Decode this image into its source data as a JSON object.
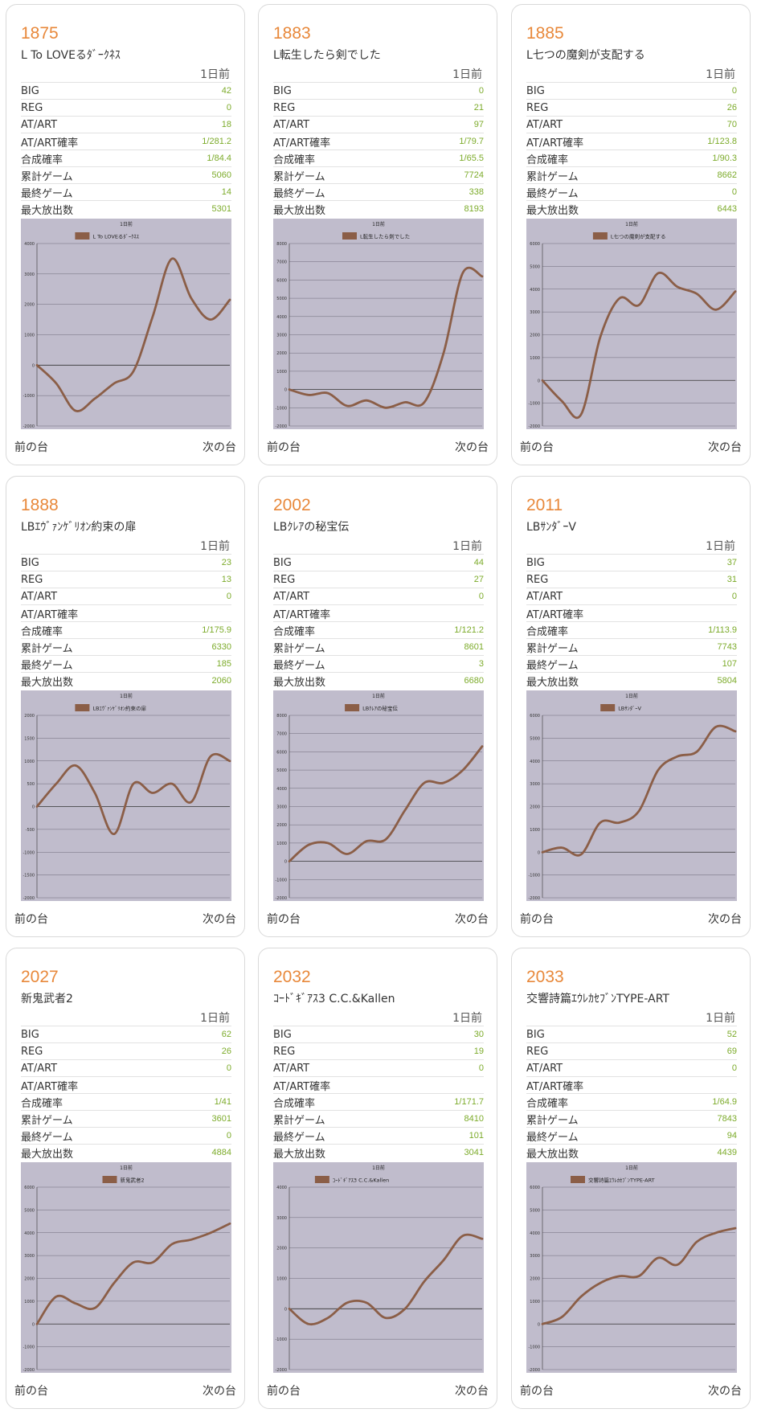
{
  "labels": {
    "day": "1日前",
    "prev": "前の台",
    "next": "次の台",
    "stats": [
      "BIG",
      "REG",
      "AT/ART",
      "AT/ART確率",
      "合成確率",
      "累計ゲーム",
      "最終ゲーム",
      "最大放出数"
    ]
  },
  "colors": {
    "number": "#e8883a",
    "value": "#7cab2a",
    "line": "#8b5e47",
    "plot_bg": "#c0bccc"
  },
  "machines": [
    {
      "number": "1875",
      "name": "L To LOVEるﾀﾞｰｸﾈｽ",
      "stats": [
        "42",
        "0",
        "18",
        "1/281.2",
        "1/84.4",
        "5060",
        "14",
        "5301"
      ],
      "chart_data": {
        "type": "line",
        "title": "1日前",
        "legend": "L To LOVEるﾀﾞｰｸﾈｽ",
        "ylim": [
          -2000,
          4000
        ],
        "yticks": [
          -2000,
          -1000,
          0,
          1000,
          2000,
          3000,
          4000
        ],
        "x": [
          0,
          506,
          1012,
          1518,
          2024,
          2530,
          3036,
          3542,
          4048,
          4554,
          5060
        ],
        "y": [
          0,
          -600,
          -1500,
          -1100,
          -600,
          -200,
          1600,
          3500,
          2200,
          1500,
          2150
        ]
      }
    },
    {
      "number": "1883",
      "name": "L転生したら剣でした",
      "stats": [
        "0",
        "21",
        "97",
        "1/79.7",
        "1/65.5",
        "7724",
        "338",
        "8193"
      ],
      "chart_data": {
        "type": "line",
        "title": "1日前",
        "legend": "L転生したら剣でした",
        "ylim": [
          -2000,
          8000
        ],
        "yticks": [
          -2000,
          -1000,
          0,
          1000,
          2000,
          3000,
          4000,
          5000,
          6000,
          7000,
          8000
        ],
        "x": [
          0,
          772,
          1545,
          2317,
          3090,
          3862,
          4634,
          5407,
          6179,
          6952,
          7724
        ],
        "y": [
          0,
          -300,
          -200,
          -900,
          -600,
          -1000,
          -700,
          -700,
          2000,
          6400,
          6200
        ]
      }
    },
    {
      "number": "1885",
      "name": "L七つの魔剣が支配する",
      "stats": [
        "0",
        "26",
        "70",
        "1/123.8",
        "1/90.3",
        "8662",
        "0",
        "6443"
      ],
      "chart_data": {
        "type": "line",
        "title": "1日前",
        "legend": "L七つの魔剣が支配する",
        "ylim": [
          -2000,
          6000
        ],
        "yticks": [
          -2000,
          -1000,
          0,
          1000,
          2000,
          3000,
          4000,
          5000,
          6000
        ],
        "x": [
          0,
          866,
          1732,
          2599,
          3465,
          4331,
          5197,
          6063,
          6930,
          7796,
          8662
        ],
        "y": [
          0,
          -900,
          -1500,
          1900,
          3600,
          3300,
          4700,
          4100,
          3800,
          3100,
          3900
        ]
      }
    },
    {
      "number": "1888",
      "name": "LBｴｳﾞｧﾝｹﾞﾘｵﾝ約束の扉",
      "stats": [
        "23",
        "13",
        "0",
        "",
        "1/175.9",
        "6330",
        "185",
        "2060"
      ],
      "chart_data": {
        "type": "line",
        "title": "1日前",
        "legend": "LBｴｳﾞｧﾝｹﾞﾘｵﾝ約束の扉",
        "ylim": [
          -2000,
          2000
        ],
        "yticks": [
          -2000,
          -1500,
          -1000,
          -500,
          0,
          500,
          1000,
          1500,
          2000
        ],
        "x": [
          0,
          633,
          1266,
          1899,
          2532,
          3165,
          3798,
          4431,
          5064,
          5697,
          6330
        ],
        "y": [
          0,
          500,
          900,
          300,
          -600,
          500,
          300,
          500,
          100,
          1100,
          1000
        ]
      }
    },
    {
      "number": "2002",
      "name": "LBｸﾚｱの秘宝伝",
      "stats": [
        "44",
        "27",
        "0",
        "",
        "1/121.2",
        "8601",
        "3",
        "6680"
      ],
      "chart_data": {
        "type": "line",
        "title": "1日前",
        "legend": "LBｸﾚｱの秘宝伝",
        "ylim": [
          -2000,
          8000
        ],
        "yticks": [
          -2000,
          -1000,
          0,
          1000,
          2000,
          3000,
          4000,
          5000,
          6000,
          7000,
          8000
        ],
        "x": [
          0,
          860,
          1720,
          2580,
          3440,
          4300,
          5161,
          6021,
          6881,
          7741,
          8601
        ],
        "y": [
          0,
          900,
          1000,
          400,
          1100,
          1200,
          2800,
          4300,
          4300,
          5000,
          6300
        ]
      }
    },
    {
      "number": "2011",
      "name": "LBｻﾝﾀﾞｰV",
      "stats": [
        "37",
        "31",
        "0",
        "",
        "1/113.9",
        "7743",
        "107",
        "5804"
      ],
      "chart_data": {
        "type": "line",
        "title": "1日前",
        "legend": "LBｻﾝﾀﾞｰV",
        "ylim": [
          -2000,
          6000
        ],
        "yticks": [
          -2000,
          -1000,
          0,
          1000,
          2000,
          3000,
          4000,
          5000,
          6000
        ],
        "x": [
          0,
          774,
          1549,
          2323,
          3097,
          3872,
          4646,
          5420,
          6194,
          6969,
          7743
        ],
        "y": [
          0,
          200,
          -100,
          1300,
          1300,
          1800,
          3600,
          4200,
          4400,
          5500,
          5300
        ]
      }
    },
    {
      "number": "2027",
      "name": "新鬼武者2",
      "stats": [
        "62",
        "26",
        "0",
        "",
        "1/41",
        "3601",
        "0",
        "4884"
      ],
      "chart_data": {
        "type": "line",
        "title": "1日前",
        "legend": "新鬼武者2",
        "ylim": [
          -2000,
          6000
        ],
        "yticks": [
          -2000,
          -1000,
          0,
          1000,
          2000,
          3000,
          4000,
          5000,
          6000
        ],
        "x": [
          0,
          360,
          720,
          1080,
          1440,
          1801,
          2161,
          2521,
          2881,
          3241,
          3601
        ],
        "y": [
          0,
          1200,
          900,
          700,
          1800,
          2700,
          2700,
          3500,
          3700,
          4000,
          4400
        ]
      }
    },
    {
      "number": "2032",
      "name": "ｺｰﾄﾞｷﾞｱｽ3 C.C.&Kallen",
      "stats": [
        "30",
        "19",
        "0",
        "",
        "1/171.7",
        "8410",
        "101",
        "3041"
      ],
      "chart_data": {
        "type": "line",
        "title": "1日前",
        "legend": "ｺｰﾄﾞｷﾞｱｽ3 C.C.&Kallen",
        "ylim": [
          -2000,
          4000
        ],
        "yticks": [
          -2000,
          -1000,
          0,
          1000,
          2000,
          3000,
          4000
        ],
        "x": [
          0,
          841,
          1682,
          2523,
          3364,
          4205,
          5046,
          5887,
          6728,
          7569,
          8410
        ],
        "y": [
          0,
          -500,
          -300,
          200,
          200,
          -300,
          0,
          900,
          1600,
          2400,
          2300
        ]
      }
    },
    {
      "number": "2033",
      "name": "交響詩篇ｴｳﾚｶｾﾌﾞﾝTYPE-ART",
      "stats": [
        "52",
        "69",
        "0",
        "",
        "1/64.9",
        "7843",
        "94",
        "4439"
      ],
      "chart_data": {
        "type": "line",
        "title": "1日前",
        "legend": "交響詩篇ｴｳﾚｶｾﾌﾞﾝTYPE-ART",
        "ylim": [
          -2000,
          6000
        ],
        "yticks": [
          -2000,
          -1000,
          0,
          1000,
          2000,
          3000,
          4000,
          5000,
          6000
        ],
        "x": [
          0,
          784,
          1569,
          2353,
          3137,
          3922,
          4706,
          5490,
          6274,
          7059,
          7843
        ],
        "y": [
          0,
          300,
          1200,
          1800,
          2100,
          2100,
          2900,
          2600,
          3600,
          4000,
          4200
        ]
      }
    }
  ]
}
